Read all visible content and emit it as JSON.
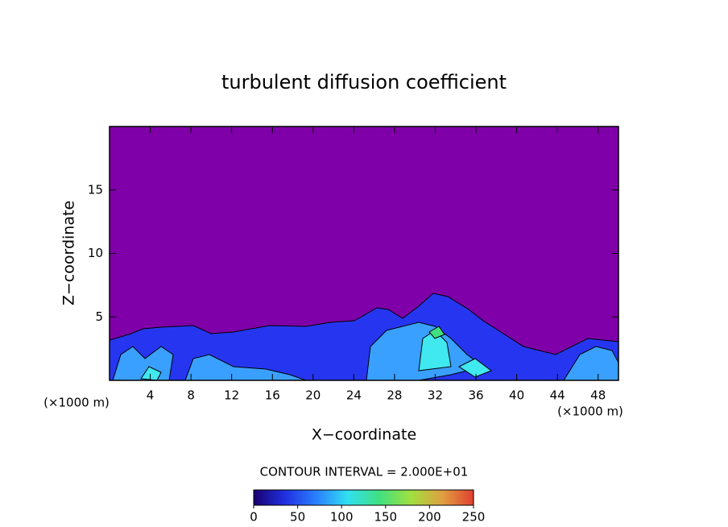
{
  "chart_data": {
    "type": "contour",
    "title": "turbulent diffusion coefficient",
    "xlabel": "X−coordinate",
    "ylabel": "Z−coordinate",
    "x_unit": "(×1000 m)",
    "y_unit": "(×1000 m)",
    "xlim": [
      0,
      50
    ],
    "ylim": [
      0,
      20
    ],
    "xticks": [
      4,
      8,
      12,
      16,
      20,
      24,
      28,
      32,
      36,
      40,
      44,
      48
    ],
    "yticks": [
      5,
      10,
      15
    ],
    "contour_interval": "CONTOUR INTERVAL = 2.000E+01",
    "colorbar": {
      "lim": [
        0,
        250
      ],
      "ticks": [
        0,
        50,
        100,
        150,
        200,
        250
      ],
      "colors": [
        "#1a0070",
        "#2030e0",
        "#2a80ff",
        "#30e0f0",
        "#40e080",
        "#a0e040",
        "#e0a040",
        "#e04030"
      ]
    }
  }
}
